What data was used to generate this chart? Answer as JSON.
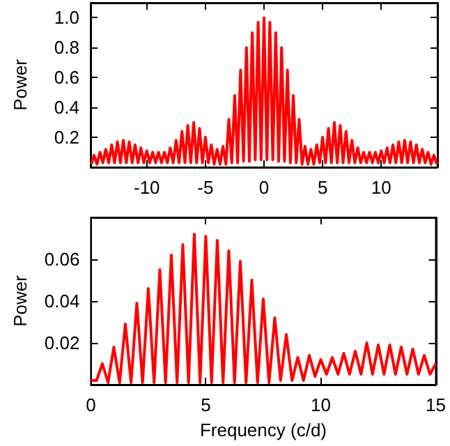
{
  "chart_data": [
    {
      "type": "line",
      "ylabel": "Power",
      "xlim": [
        -14.8,
        14.8
      ],
      "ylim": [
        0,
        1.1
      ],
      "xticks": [
        -10,
        -5,
        0,
        5,
        10
      ],
      "yticks": [
        0.2,
        0.4,
        0.6,
        0.8,
        {
          "value": 1,
          "label": "1.0"
        }
      ],
      "marker": "none",
      "series": [
        {
          "color": "#ff0000",
          "x": [
            -14.75,
            -14.5,
            -14.25,
            -14,
            -13.75,
            -13.5,
            -13.25,
            -13,
            -12.75,
            -12.5,
            -12.25,
            -12,
            -11.75,
            -11.5,
            -11.25,
            -11,
            -10.75,
            -10.5,
            -10.25,
            -10,
            -9.75,
            -9.5,
            -9.25,
            -9,
            -8.75,
            -8.5,
            -8.25,
            -8,
            -7.75,
            -7.5,
            -7.25,
            -7,
            -6.75,
            -6.5,
            -6.25,
            -6,
            -5.75,
            -5.5,
            -5.25,
            -5,
            -4.75,
            -4.5,
            -4.25,
            -4,
            -3.75,
            -3.5,
            -3.25,
            -3,
            -2.75,
            -2.5,
            -2.25,
            -2,
            -1.75,
            -1.5,
            -1.25,
            -1,
            -0.75,
            -0.5,
            -0.25,
            0,
            0.25,
            0.5,
            0.75,
            1,
            1.25,
            1.5,
            1.75,
            2,
            2.25,
            2.5,
            2.75,
            3,
            3.25,
            3.5,
            3.75,
            4,
            4.25,
            4.5,
            4.75,
            5,
            5.25,
            5.5,
            5.75,
            6,
            6.25,
            6.5,
            6.75,
            7,
            7.25,
            7.5,
            7.75,
            8,
            8.25,
            8.5,
            8.75,
            9,
            9.25,
            9.5,
            9.75,
            10,
            10.25,
            10.5,
            10.75,
            11,
            11.25,
            11.5,
            11.75,
            12,
            12.25,
            12.5,
            12.75,
            13,
            13.25,
            13.5,
            13.75,
            14,
            14.25,
            14.5,
            14.75
          ],
          "values": [
            0.02,
            0.08,
            0.02,
            0.1,
            0.03,
            0.12,
            0.03,
            0.15,
            0.03,
            0.17,
            0.03,
            0.18,
            0.03,
            0.17,
            0.03,
            0.15,
            0.03,
            0.13,
            0.03,
            0.11,
            0.03,
            0.1,
            0.03,
            0.1,
            0.03,
            0.1,
            0.03,
            0.13,
            0.03,
            0.18,
            0.03,
            0.24,
            0.03,
            0.28,
            0.03,
            0.3,
            0.03,
            0.26,
            0.03,
            0.2,
            0.03,
            0.15,
            0.02,
            0.12,
            0.02,
            0.14,
            0.02,
            0.32,
            0.03,
            0.48,
            0.03,
            0.65,
            0.04,
            0.8,
            0.04,
            0.9,
            0.05,
            0.97,
            0.05,
            1.0,
            0.05,
            0.97,
            0.05,
            0.9,
            0.04,
            0.8,
            0.04,
            0.65,
            0.03,
            0.48,
            0.03,
            0.32,
            0.02,
            0.14,
            0.02,
            0.12,
            0.02,
            0.15,
            0.03,
            0.2,
            0.03,
            0.26,
            0.03,
            0.3,
            0.03,
            0.28,
            0.03,
            0.24,
            0.03,
            0.18,
            0.03,
            0.13,
            0.03,
            0.1,
            0.03,
            0.1,
            0.03,
            0.1,
            0.03,
            0.11,
            0.03,
            0.13,
            0.03,
            0.15,
            0.03,
            0.17,
            0.03,
            0.18,
            0.03,
            0.17,
            0.03,
            0.15,
            0.03,
            0.12,
            0.03,
            0.1,
            0.02,
            0.08,
            0.02
          ]
        }
      ]
    },
    {
      "type": "line",
      "xlabel": "Frequency (c/d)",
      "ylabel": "Power",
      "xlim": [
        0,
        15
      ],
      "ylim": [
        0,
        0.08
      ],
      "xticks": [
        0,
        5,
        10,
        15
      ],
      "yticks": [
        0.02,
        0.04,
        0.06
      ],
      "marker": "none",
      "series": [
        {
          "color": "#ff0000",
          "x": [
            0,
            0.25,
            0.5,
            0.75,
            1,
            1.25,
            1.5,
            1.75,
            2,
            2.25,
            2.5,
            2.75,
            3,
            3.25,
            3.5,
            3.75,
            4,
            4.25,
            4.5,
            4.75,
            5,
            5.25,
            5.5,
            5.75,
            6,
            6.25,
            6.5,
            6.75,
            7,
            7.25,
            7.5,
            7.75,
            8,
            8.25,
            8.5,
            8.75,
            9,
            9.25,
            9.5,
            9.75,
            10,
            10.25,
            10.5,
            10.75,
            11,
            11.25,
            11.5,
            11.75,
            12,
            12.25,
            12.5,
            12.75,
            13,
            13.25,
            13.5,
            13.75,
            14,
            14.25,
            14.5,
            14.75,
            15
          ],
          "values": [
            0.002,
            0.002,
            0.01,
            0.001,
            0.018,
            0.001,
            0.029,
            0.001,
            0.039,
            0.001,
            0.046,
            0.001,
            0.055,
            0.001,
            0.062,
            0.001,
            0.067,
            0.001,
            0.072,
            0.001,
            0.071,
            0.001,
            0.069,
            0.001,
            0.064,
            0.001,
            0.059,
            0.001,
            0.05,
            0.001,
            0.041,
            0.001,
            0.032,
            0.002,
            0.024,
            0.002,
            0.013,
            0.002,
            0.014,
            0.004,
            0.012,
            0.005,
            0.013,
            0.005,
            0.015,
            0.005,
            0.016,
            0.005,
            0.02,
            0.005,
            0.019,
            0.005,
            0.019,
            0.005,
            0.018,
            0.005,
            0.017,
            0.005,
            0.014,
            0.005,
            0.01
          ]
        }
      ]
    }
  ]
}
